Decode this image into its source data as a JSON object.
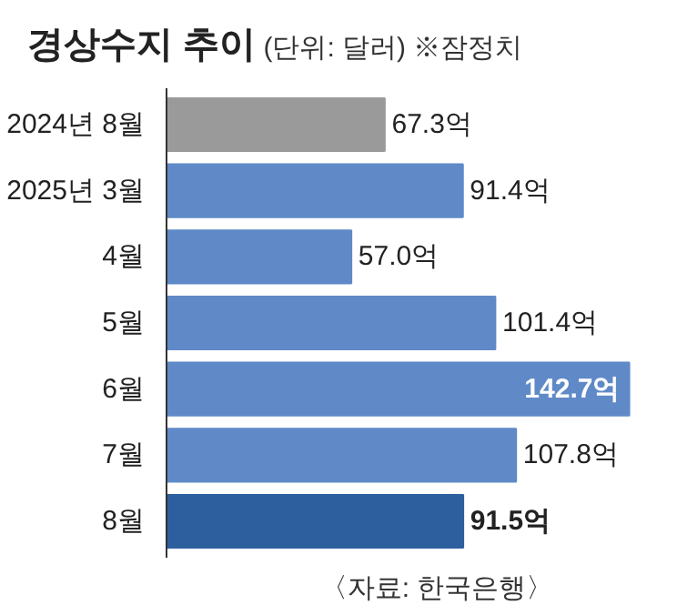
{
  "chart_data": {
    "type": "bar",
    "orientation": "horizontal",
    "title": "경상수지 추이",
    "subtitle": "(단위: 달러) ※잠정치",
    "categories": [
      "2024년 8월",
      "2025년 3월",
      "4월",
      "5월",
      "6월",
      "7월",
      "8월"
    ],
    "values": [
      67.3,
      91.4,
      57.0,
      101.4,
      142.7,
      107.8,
      91.5
    ],
    "colors": [
      "#9a9a9a",
      "#5f8ac7",
      "#5f8ac7",
      "#5f8ac7",
      "#5f8ac7",
      "#5f8ac7",
      "#2d5f9f"
    ],
    "value_labels": [
      "67.3억",
      "91.4억",
      "57.0억",
      "101.4억",
      "142.7억",
      "107.8억",
      "91.5억"
    ],
    "annotations": [
      "〈자료: 한국은행〉"
    ],
    "grid": false
  }
}
